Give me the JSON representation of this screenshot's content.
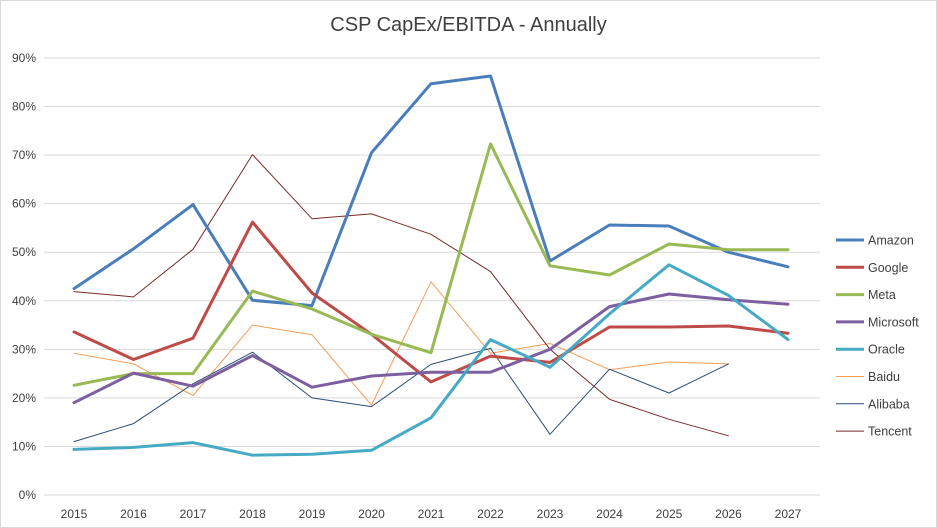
{
  "chart_data": {
    "type": "line",
    "title": "CSP CapEx/EBITDA - Annually",
    "xlabel": "",
    "ylabel": "",
    "x": [
      "2015",
      "2016",
      "2017",
      "2018",
      "2019",
      "2020",
      "2021",
      "2022",
      "2023",
      "2024",
      "2025",
      "2026",
      "2027"
    ],
    "ylim": [
      0,
      90
    ],
    "y_ticks": [
      0,
      10,
      20,
      30,
      40,
      50,
      60,
      70,
      80,
      90
    ],
    "y_tick_labels": [
      "0%",
      "10%",
      "20%",
      "30%",
      "40%",
      "50%",
      "60%",
      "70%",
      "80%",
      "90%"
    ],
    "grid": "horizontal",
    "legend_position": "right",
    "series": [
      {
        "name": "Amazon",
        "color": "#4a7ebb",
        "width": 3,
        "values": [
          42.5,
          50.7,
          59.8,
          40.1,
          39.0,
          70.5,
          84.7,
          86.3,
          48.2,
          55.6,
          55.4,
          50.0,
          47.0
        ]
      },
      {
        "name": "Google",
        "color": "#be4b48",
        "width": 3,
        "values": [
          33.6,
          27.9,
          32.3,
          56.2,
          41.6,
          33.1,
          23.3,
          28.6,
          27.3,
          34.6,
          34.6,
          34.8,
          33.3
        ]
      },
      {
        "name": "Meta",
        "color": "#98b954",
        "width": 3,
        "values": [
          22.6,
          25.0,
          25.0,
          42.0,
          38.3,
          33.1,
          29.3,
          72.3,
          47.2,
          45.3,
          51.7,
          50.5,
          50.5
        ]
      },
      {
        "name": "Microsoft",
        "color": "#7d5fa0",
        "width": 3,
        "values": [
          19.0,
          25.1,
          22.4,
          28.7,
          22.2,
          24.5,
          25.3,
          25.3,
          30.0,
          38.8,
          41.4,
          40.2,
          39.3
        ]
      },
      {
        "name": "Oracle",
        "color": "#46aac5",
        "width": 3,
        "values": [
          9.4,
          9.8,
          10.8,
          8.2,
          8.4,
          9.2,
          15.9,
          32.0,
          26.3,
          37.3,
          47.4,
          41.1,
          32.0
        ]
      },
      {
        "name": "Baidu",
        "color": "#f59d56",
        "width": 1,
        "values": [
          29.2,
          27.0,
          20.5,
          35.0,
          33.0,
          18.5,
          43.9,
          29.2,
          31.2,
          25.8,
          27.4,
          27.0,
          null
        ]
      },
      {
        "name": "Alibaba",
        "color": "#2c4d75",
        "width": 1,
        "values": [
          11.0,
          14.7,
          22.9,
          29.4,
          20.0,
          18.2,
          26.9,
          30.2,
          12.5,
          25.9,
          21.0,
          27.0,
          null
        ]
      },
      {
        "name": "Tencent",
        "color": "#772c2a",
        "width": 1,
        "values": [
          41.9,
          40.8,
          50.6,
          70.1,
          56.9,
          57.9,
          53.7,
          46.0,
          30.0,
          19.7,
          15.6,
          12.2,
          null
        ]
      }
    ]
  }
}
